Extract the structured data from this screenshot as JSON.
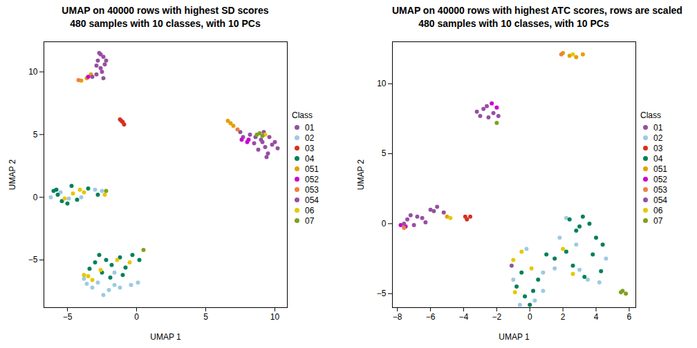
{
  "chart_data": [
    {
      "type": "scatter",
      "title": "UMAP on 40000 rows with highest SD scores",
      "subtitle": "480 samples with 10 classes, with 10 PCs",
      "x_label": "UMAP 1",
      "y_label": "UMAP 2",
      "xlim": [
        -6.7,
        10.9
      ],
      "ylim": [
        -8.8,
        12.4
      ],
      "xticks": [
        -5,
        0,
        5,
        10
      ],
      "yticks": [
        -5,
        0,
        5,
        10
      ],
      "legend": "right",
      "legend_title": "Class",
      "series": [
        {
          "name": "01",
          "color": "#8E559C",
          "values": [
            [
              7.5,
              5.2
            ],
            [
              7.7,
              4.8
            ],
            [
              9.1,
              4.4
            ],
            [
              8.6,
              4.8
            ],
            [
              -2.9,
              10.5
            ],
            [
              -2.4,
              9.5
            ]
          ]
        },
        {
          "name": "02",
          "color": "#9ECAE1",
          "values": [
            [
              -6.2,
              0
            ],
            [
              -5.5,
              0.4
            ],
            [
              -4.9,
              -0.1
            ],
            [
              -3,
              0.6
            ],
            [
              -2.5,
              0.5
            ],
            [
              -4,
              0
            ],
            [
              -3.6,
              -6.9
            ],
            [
              -3.2,
              -7.2
            ],
            [
              -2.4,
              -7.8
            ],
            [
              -2,
              -7.4
            ],
            [
              -1.2,
              -7.2
            ],
            [
              -0.4,
              -7
            ],
            [
              0.1,
              -6.8
            ],
            [
              -2.8,
              -6.8
            ],
            [
              -1.6,
              -7
            ],
            [
              -3.8,
              -6.5
            ],
            [
              -1.6,
              -6
            ]
          ]
        },
        {
          "name": "03",
          "color": "#D7301F",
          "values": [
            [
              -1.2,
              6.2
            ],
            [
              -1.0,
              6.0
            ],
            [
              -0.9,
              5.8
            ],
            [
              -1.1,
              6.1
            ]
          ]
        },
        {
          "name": "04",
          "color": "#00805A",
          "values": [
            [
              -6,
              0.5
            ],
            [
              -5.7,
              0.2
            ],
            [
              -5.4,
              -0.3
            ],
            [
              -5,
              -0.5
            ],
            [
              -4.7,
              0.9
            ],
            [
              -4.3,
              -0.2
            ],
            [
              -3.5,
              0.7
            ],
            [
              -2.8,
              0.2
            ],
            [
              -5.8,
              0.6
            ],
            [
              -2.7,
              -4.6
            ],
            [
              -2.2,
              -5
            ],
            [
              -1.8,
              -5.4
            ],
            [
              -1.2,
              -4.8
            ],
            [
              -0.8,
              -5.6
            ],
            [
              -0.3,
              -4.6
            ],
            [
              0.2,
              -5
            ],
            [
              -2.5,
              -6
            ],
            [
              -1.9,
              -6.4
            ],
            [
              -3,
              -5.2
            ],
            [
              -3.4,
              -5.7
            ],
            [
              -1,
              -6.2
            ]
          ]
        },
        {
          "name": "051",
          "color": "#E69F00",
          "values": [
            [
              -4,
              9.3
            ],
            [
              -3.6,
              9.5
            ],
            [
              -3.3,
              9.8
            ],
            [
              6.6,
              6.1
            ],
            [
              6.8,
              5.9
            ],
            [
              7,
              5.7
            ]
          ]
        },
        {
          "name": "052",
          "color": "#CC00CC",
          "values": [
            [
              7.6,
              4.6
            ],
            [
              8,
              4.4
            ],
            [
              8.1,
              4.6
            ],
            [
              -3.5,
              9.6
            ]
          ]
        },
        {
          "name": "053",
          "color": "#F08040",
          "values": [
            [
              -4.2,
              9.35
            ],
            [
              7.3,
              5.4
            ]
          ]
        },
        {
          "name": "054",
          "color": "#984EA3",
          "values": [
            [
              -2.6,
              11.4
            ],
            [
              -2.4,
              11.2
            ],
            [
              -2.8,
              10.9
            ],
            [
              -2.3,
              10.6
            ],
            [
              -2.6,
              10.3
            ],
            [
              -2.5,
              10
            ],
            [
              -2.9,
              9.8
            ],
            [
              -3.2,
              9.6
            ],
            [
              -2.2,
              10.9
            ],
            [
              -2.7,
              11.5
            ],
            [
              8.5,
              4.3
            ],
            [
              9,
              4.6
            ],
            [
              9.3,
              4
            ],
            [
              9.5,
              3.5
            ],
            [
              9.8,
              4.2
            ],
            [
              10.2,
              3.9
            ],
            [
              9.2,
              5.2
            ],
            [
              8.8,
              3.8
            ],
            [
              9.6,
              4.8
            ],
            [
              10,
              4.4
            ],
            [
              9.4,
              3.2
            ],
            [
              8.2,
              5
            ]
          ]
        },
        {
          "name": "06",
          "color": "#E6C800",
          "values": [
            [
              9.3,
              5
            ],
            [
              -4.6,
              0.3
            ],
            [
              -4.1,
              0.6
            ],
            [
              -3.8,
              0.4
            ],
            [
              -5.2,
              -0.1
            ],
            [
              -3.5,
              -6.3
            ],
            [
              -3.2,
              -6.6
            ],
            [
              -2.6,
              -5.8
            ],
            [
              -1.4,
              -5
            ],
            [
              -0.5,
              -5.2
            ],
            [
              -3.8,
              -6.2
            ],
            [
              -2.3,
              0.2
            ]
          ]
        },
        {
          "name": "07",
          "color": "#7FA020",
          "values": [
            [
              8.7,
              5
            ],
            [
              8.9,
              5.1
            ],
            [
              9.1,
              4.9
            ],
            [
              0.5,
              -4.2
            ],
            [
              -2.2,
              0.5
            ]
          ]
        }
      ]
    },
    {
      "type": "scatter",
      "title": "UMAP on 40000 rows with highest ATC scores, rows are scaled",
      "subtitle": "480 samples with 10 classes, with 10 PCs",
      "x_label": "UMAP 1",
      "y_label": "UMAP 2",
      "xlim": [
        -8.3,
        6.4
      ],
      "ylim": [
        -6.0,
        13.0
      ],
      "xticks": [
        -8,
        -6,
        -4,
        -2,
        0,
        2,
        4,
        6
      ],
      "yticks": [
        -5,
        0,
        5,
        10
      ],
      "legend": "right",
      "legend_title": "Class",
      "series": [
        {
          "name": "01",
          "color": "#8E559C",
          "values": [
            [
              -6.8,
              0.5
            ],
            [
              -5.8,
              0.9
            ],
            [
              -1.1,
              -3
            ]
          ]
        },
        {
          "name": "02",
          "color": "#9ECAE1",
          "values": [
            [
              -0.6,
              -5.8
            ],
            [
              0.3,
              -5.5
            ],
            [
              -1,
              -4
            ],
            [
              0.8,
              -3.5
            ],
            [
              2.2,
              0.4
            ],
            [
              1.8,
              -1
            ],
            [
              4.6,
              -2.5
            ],
            [
              4.2,
              -4.2
            ],
            [
              3.5,
              -4
            ],
            [
              2.8,
              -1.5
            ],
            [
              1.5,
              -3.2
            ],
            [
              -0.2,
              -1.8
            ],
            [
              3,
              -3.3
            ],
            [
              0.8,
              -4.8
            ]
          ]
        },
        {
          "name": "03",
          "color": "#D7301F",
          "values": [
            [
              -3.9,
              0.5
            ],
            [
              -3.6,
              0.5
            ],
            [
              -3.8,
              0.3
            ]
          ]
        },
        {
          "name": "04",
          "color": "#00805A",
          "values": [
            [
              -0.8,
              -4.5
            ],
            [
              -0.3,
              -5.2
            ],
            [
              0.2,
              -4.8
            ],
            [
              0.5,
              -4
            ],
            [
              -0.5,
              -3.5
            ],
            [
              1,
              -2.2
            ],
            [
              1.5,
              -2.5
            ],
            [
              2.2,
              -2
            ],
            [
              2.8,
              -0.5
            ],
            [
              3.2,
              0.5
            ],
            [
              3.6,
              0
            ],
            [
              4,
              -1
            ],
            [
              4.4,
              -1.5
            ],
            [
              3.8,
              -2.2
            ],
            [
              3.3,
              -3.8
            ],
            [
              4.3,
              -3.4
            ],
            [
              2.6,
              -3
            ],
            [
              3,
              -0.2
            ],
            [
              2.4,
              0.3
            ],
            [
              0,
              -5.8
            ]
          ]
        },
        {
          "name": "051",
          "color": "#E69F00",
          "values": [
            [
              2,
              12.2
            ],
            [
              2.4,
              12
            ],
            [
              2.8,
              11.9
            ],
            [
              3.2,
              12.1
            ],
            [
              -5,
              0.5
            ]
          ]
        },
        {
          "name": "052",
          "color": "#CC00CC",
          "values": [
            [
              -2.3,
              8.6
            ],
            [
              -2,
              8.3
            ],
            [
              -7.8,
              -0.1
            ],
            [
              -7.5,
              -0.2
            ]
          ]
        },
        {
          "name": "053",
          "color": "#F08040",
          "values": [
            [
              1.9,
              12.1
            ],
            [
              -7.6,
              -0.3
            ]
          ]
        },
        {
          "name": "054",
          "color": "#984EA3",
          "values": [
            [
              -3.2,
              8
            ],
            [
              -2.8,
              8.2
            ],
            [
              -2.5,
              7.6
            ],
            [
              -2.2,
              7.9
            ],
            [
              -1.9,
              7.7
            ],
            [
              -3,
              7.7
            ],
            [
              -2.6,
              8.4
            ],
            [
              -7.6,
              0
            ],
            [
              -7.4,
              0.3
            ],
            [
              -7.2,
              0.6
            ],
            [
              -6.5,
              0.4
            ],
            [
              -6,
              1
            ],
            [
              -5.6,
              1.2
            ],
            [
              -5.2,
              0.8
            ],
            [
              -6.3,
              0.1
            ],
            [
              -7,
              -0.1
            ]
          ]
        },
        {
          "name": "06",
          "color": "#E6C800",
          "values": [
            [
              2.6,
              12.1
            ],
            [
              -4.8,
              0.4
            ],
            [
              -0.5,
              -2
            ],
            [
              -0.9,
              -4.9
            ],
            [
              0.1,
              -3.2
            ],
            [
              2,
              -1.8
            ],
            [
              2.6,
              -3.6
            ],
            [
              -1,
              -2.6
            ]
          ]
        },
        {
          "name": "07",
          "color": "#7FA020",
          "values": [
            [
              -2,
              7.2
            ],
            [
              5.6,
              -4.8
            ],
            [
              5.8,
              -5
            ],
            [
              5.5,
              -4.9
            ]
          ]
        }
      ]
    }
  ]
}
